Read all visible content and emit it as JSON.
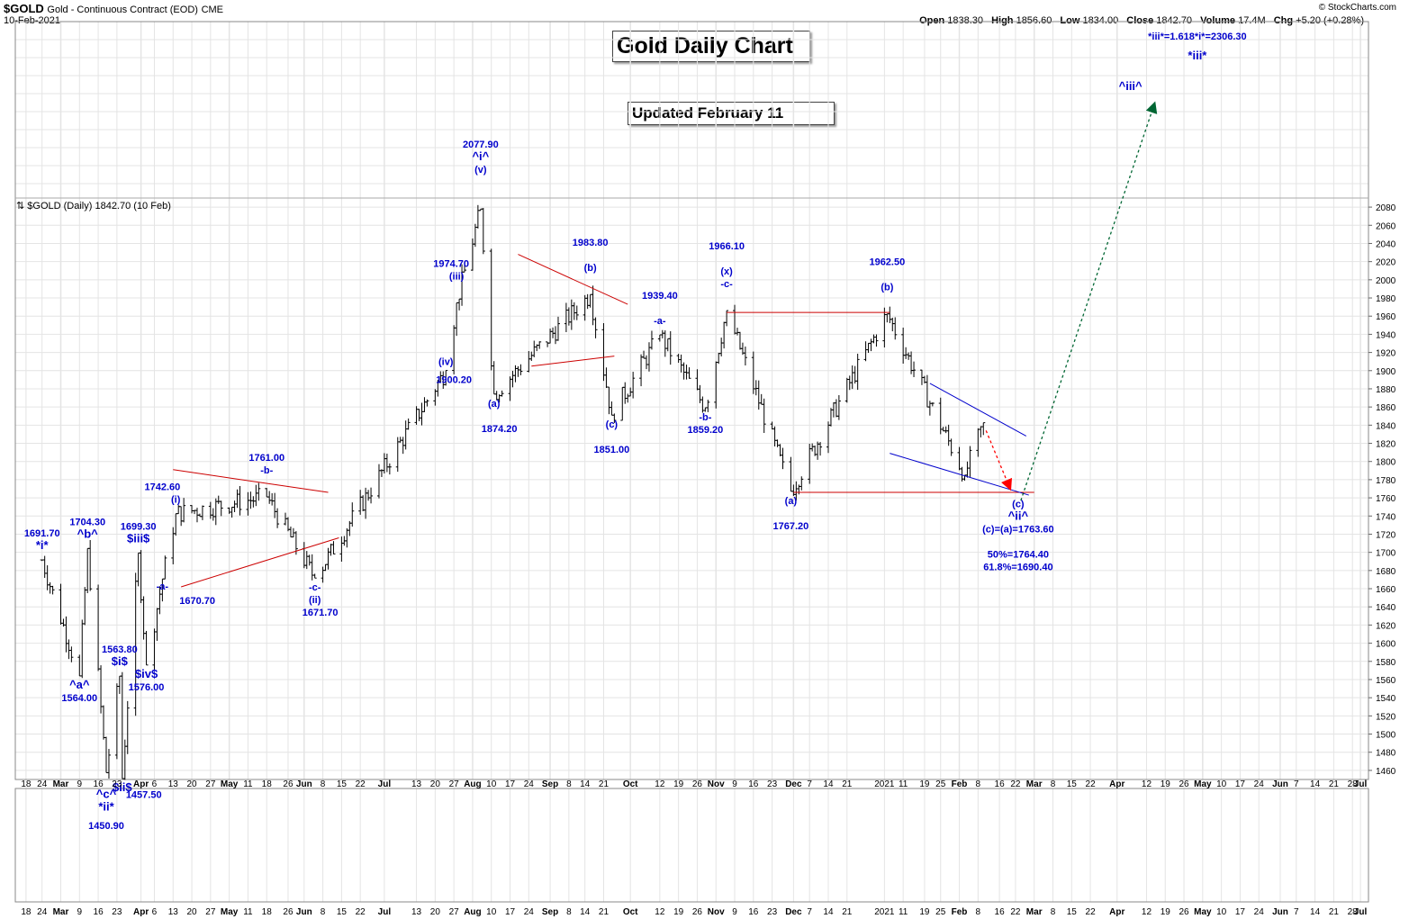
{
  "header": {
    "symbol": "$GOLD",
    "description": "Gold - Continuous Contract (EOD)",
    "exchange": "CME",
    "date": "10-Feb-2021",
    "copyright": "© StockCharts.com",
    "ohlc": [
      {
        "label": "Open",
        "value": "1838.30"
      },
      {
        "label": "High",
        "value": "1856.60"
      },
      {
        "label": "Low",
        "value": "1834.00"
      },
      {
        "label": "Close",
        "value": "1842.70"
      },
      {
        "label": "Volume",
        "value": "17.4M"
      },
      {
        "label": "Chg",
        "value": "+5.20 (+0.28%)"
      }
    ],
    "legend": "$GOLD (Daily) 1842.70 (10 Feb)"
  },
  "boxes": {
    "title": "Gold Daily Chart",
    "updated": "Updated February 11"
  },
  "colors": {
    "bars": "#000000",
    "annotation": "#0000cc",
    "trendline_red": "#cc0000",
    "trendline_blue": "#0000cc",
    "arrow_green": "#006633",
    "arrow_red": "#ff0000",
    "grid": "#e4e4e4"
  },
  "chart_data": {
    "type": "ohlc",
    "title": "Gold Daily Chart",
    "ylim": [
      1450,
      2090
    ],
    "y_ticks": [
      1460,
      1480,
      1500,
      1520,
      1540,
      1560,
      1580,
      1600,
      1620,
      1640,
      1660,
      1680,
      1700,
      1720,
      1740,
      1760,
      1780,
      1800,
      1820,
      1840,
      1860,
      1880,
      1900,
      1920,
      1940,
      1960,
      1980,
      2000,
      2020,
      2040,
      2060,
      2080
    ],
    "x_ticks": [
      "18",
      "24",
      "Mar",
      "9",
      "16",
      "23",
      "Apr",
      "6",
      "13",
      "20",
      "27",
      "May",
      "11",
      "18",
      "26",
      "Jun",
      "8",
      "15",
      "22",
      "Jul",
      "13",
      "20",
      "27",
      "Aug",
      "10",
      "17",
      "24",
      "Sep",
      "8",
      "14",
      "21",
      "Oct",
      "12",
      "19",
      "26",
      "Nov",
      "9",
      "16",
      "23",
      "Dec",
      "7",
      "14",
      "21",
      "2021",
      "11",
      "19",
      "25",
      "Feb",
      "8",
      "16",
      "22",
      "Mar",
      "8",
      "15",
      "22",
      "Apr",
      "12",
      "19",
      "26",
      "May",
      "10",
      "17",
      "24",
      "Jun",
      "7",
      "14",
      "21",
      "28",
      "Jul"
    ],
    "pivots": [
      {
        "x": "2020-02-24",
        "y": 1691.7
      },
      {
        "x": "2020-03-09",
        "y": 1564.0
      },
      {
        "x": "2020-03-12",
        "y": 1704.3
      },
      {
        "x": "2020-03-19",
        "y": 1457.5
      },
      {
        "x": "2020-03-24",
        "y": 1563.8
      },
      {
        "x": "2020-03-25",
        "y": 1450.9
      },
      {
        "x": "2020-03-31",
        "y": 1699.3
      },
      {
        "x": "2020-04-03",
        "y": 1576.0
      },
      {
        "x": "2020-04-09",
        "y": 1670.7
      },
      {
        "x": "2020-04-14",
        "y": 1742.6
      },
      {
        "x": "2020-05-18",
        "y": 1761.0
      },
      {
        "x": "2020-06-05",
        "y": 1671.7
      },
      {
        "x": "2020-07-24",
        "y": 1900.2
      },
      {
        "x": "2020-07-28",
        "y": 1974.7
      },
      {
        "x": "2020-08-06",
        "y": 2077.9
      },
      {
        "x": "2020-08-11",
        "y": 1874.2
      },
      {
        "x": "2020-09-16",
        "y": 1983.8
      },
      {
        "x": "2020-09-24",
        "y": 1851.0
      },
      {
        "x": "2020-10-12",
        "y": 1939.4
      },
      {
        "x": "2020-10-29",
        "y": 1859.2
      },
      {
        "x": "2020-11-06",
        "y": 1966.1
      },
      {
        "x": "2020-11-30",
        "y": 1767.2
      },
      {
        "x": "2021-01-05",
        "y": 1962.5
      },
      {
        "x": "2021-02-03",
        "y": 1785.0
      },
      {
        "x": "2021-02-10",
        "y": 1842.7
      }
    ],
    "annotations": [
      {
        "text": "1691.70",
        "x": "2020-02-24",
        "y": 1691.7,
        "pos": "above2"
      },
      {
        "text": "*i*",
        "x": "2020-02-24",
        "y": 1691.7,
        "pos": "above1"
      },
      {
        "text": "^a^",
        "x": "2020-03-09",
        "y": 1564.0,
        "pos": "below1"
      },
      {
        "text": "1564.00",
        "x": "2020-03-09",
        "y": 1564.0,
        "pos": "below2"
      },
      {
        "text": "1704.30",
        "x": "2020-03-12",
        "y": 1704.3,
        "pos": "above2"
      },
      {
        "text": "^b^",
        "x": "2020-03-12",
        "y": 1704.3,
        "pos": "above1"
      },
      {
        "text": "1563.80",
        "x": "2020-03-24",
        "y": 1563.8,
        "pos": "above2"
      },
      {
        "text": "$i$",
        "x": "2020-03-24",
        "y": 1563.8,
        "pos": "above1"
      },
      {
        "text": "$ii$",
        "x": "2020-03-25",
        "y": 1450.9,
        "pos": "below1"
      },
      {
        "text": "^c^",
        "x": "2020-03-19",
        "y": 1457.5,
        "pos": "below2"
      },
      {
        "text": "1457.50",
        "x": "2020-03-25",
        "y": 1457.5,
        "pos": "below2r"
      },
      {
        "text": "*ii*",
        "x": "2020-03-19",
        "y": 1457.5,
        "pos": "below3"
      },
      {
        "text": "1450.90",
        "x": "2020-03-19",
        "y": 1450.9,
        "pos": "below4"
      },
      {
        "text": "1699.30",
        "x": "2020-03-31",
        "y": 1699.3,
        "pos": "above2"
      },
      {
        "text": "$iii$",
        "x": "2020-03-31",
        "y": 1699.3,
        "pos": "above1"
      },
      {
        "text": "$iv$",
        "x": "2020-04-03",
        "y": 1576.0,
        "pos": "below1"
      },
      {
        "text": "1576.00",
        "x": "2020-04-03",
        "y": 1576.0,
        "pos": "below2"
      },
      {
        "text": "-a-",
        "x": "2020-04-09",
        "y": 1670.7,
        "pos": "below0"
      },
      {
        "text": "1670.70",
        "x": "2020-04-14",
        "y": 1670.7,
        "pos": "below1r"
      },
      {
        "text": "1742.60",
        "x": "2020-04-09",
        "y": 1742.6,
        "pos": "above2"
      },
      {
        "text": "(i)",
        "x": "2020-04-14",
        "y": 1742.6,
        "pos": "above1"
      },
      {
        "text": "1761.00",
        "x": "2020-05-18",
        "y": 1761.0,
        "pos": "above3"
      },
      {
        "text": "-b-",
        "x": "2020-05-18",
        "y": 1761.0,
        "pos": "above2"
      },
      {
        "text": "-c-",
        "x": "2020-06-05",
        "y": 1671.7,
        "pos": "below1"
      },
      {
        "text": "(ii)",
        "x": "2020-06-05",
        "y": 1671.7,
        "pos": "below2"
      },
      {
        "text": "1671.70",
        "x": "2020-06-07",
        "y": 1671.7,
        "pos": "below3"
      },
      {
        "text": "(iv)",
        "x": "2020-07-24",
        "y": 1900.2,
        "pos": "above0"
      },
      {
        "text": "1900.20",
        "x": "2020-07-27",
        "y": 1900.2,
        "pos": "below1"
      },
      {
        "text": "1974.70",
        "x": "2020-07-26",
        "y": 1974.7,
        "pos": "above3"
      },
      {
        "text": "(iii)",
        "x": "2020-07-28",
        "y": 1974.7,
        "pos": "above2"
      },
      {
        "text": "2077.90",
        "x": "2020-08-06",
        "y": 2077.9,
        "pos": "above5"
      },
      {
        "text": "^i^",
        "x": "2020-08-06",
        "y": 2077.9,
        "pos": "above4"
      },
      {
        "text": "(v)",
        "x": "2020-08-06",
        "y": 2077.9,
        "pos": "above3"
      },
      {
        "text": "(a)",
        "x": "2020-08-11",
        "y": 1874.2,
        "pos": "below1"
      },
      {
        "text": "1874.20",
        "x": "2020-08-13",
        "y": 1874.2,
        "pos": "below3"
      },
      {
        "text": "1983.80",
        "x": "2020-09-16",
        "y": 1983.8,
        "pos": "above4"
      },
      {
        "text": "(b)",
        "x": "2020-09-16",
        "y": 1983.8,
        "pos": "above2"
      },
      {
        "text": "(c)",
        "x": "2020-09-24",
        "y": 1851.0,
        "pos": "below1"
      },
      {
        "text": "1851.00",
        "x": "2020-09-24",
        "y": 1851.0,
        "pos": "below3"
      },
      {
        "text": "1939.40",
        "x": "2020-10-12",
        "y": 1939.4,
        "pos": "above3"
      },
      {
        "text": "-a-",
        "x": "2020-10-12",
        "y": 1939.4,
        "pos": "above1"
      },
      {
        "text": "-b-",
        "x": "2020-10-29",
        "y": 1859.2,
        "pos": "below1"
      },
      {
        "text": "1859.20",
        "x": "2020-10-29",
        "y": 1859.2,
        "pos": "below2"
      },
      {
        "text": "1966.10",
        "x": "2020-11-06",
        "y": 1966.1,
        "pos": "above5"
      },
      {
        "text": "(x)",
        "x": "2020-11-06",
        "y": 1966.1,
        "pos": "above3"
      },
      {
        "text": "-c-",
        "x": "2020-11-06",
        "y": 1966.1,
        "pos": "above2"
      },
      {
        "text": "(a)",
        "x": "2020-11-30",
        "y": 1767.2,
        "pos": "below1"
      },
      {
        "text": "1767.20",
        "x": "2020-11-30",
        "y": 1767.2,
        "pos": "below3"
      },
      {
        "text": "1962.50",
        "x": "2021-01-05",
        "y": 1962.5,
        "pos": "above4"
      },
      {
        "text": "(b)",
        "x": "2021-01-05",
        "y": 1962.5,
        "pos": "above2"
      },
      {
        "text": "(c)",
        "x": "2021-02-23",
        "y": 1763.6,
        "pos": "below1"
      },
      {
        "text": "^ii^",
        "x": "2021-02-23",
        "y": 1763.6,
        "pos": "below2"
      },
      {
        "text": "(c)=(a)=1763.60",
        "x": "2021-02-23",
        "y": 1763.6,
        "pos": "below3"
      },
      {
        "text": "50%=1764.40",
        "x": "2021-02-23",
        "y": 1763.6,
        "pos": "below5"
      },
      {
        "text": "61.8%=1690.40",
        "x": "2021-02-23",
        "y": 1763.6,
        "pos": "below6"
      },
      {
        "text": "*iii*=1.618*i*=2306.30",
        "x": "2021-05-01",
        "y": 2090,
        "pos": "top1"
      },
      {
        "text": "*iii*",
        "x": "2021-05-01",
        "y": 2090,
        "pos": "top2"
      },
      {
        "text": "^iii^",
        "x": "2021-04-06",
        "y": 2090,
        "pos": "top3"
      }
    ],
    "trendlines": [
      {
        "color": "red",
        "x1": "2020-04-13",
        "y1": 1791,
        "x2": "2020-06-10",
        "y2": 1766
      },
      {
        "color": "red",
        "x1": "2020-04-16",
        "y1": 1662,
        "x2": "2020-06-14",
        "y2": 1716
      },
      {
        "color": "red",
        "x1": "2020-08-20",
        "y1": 2028,
        "x2": "2020-09-30",
        "y2": 1973
      },
      {
        "color": "red",
        "x1": "2020-08-25",
        "y1": 1905,
        "x2": "2020-09-25",
        "y2": 1916
      },
      {
        "color": "red",
        "x1": "2020-11-06",
        "y1": 1964,
        "x2": "2021-01-06",
        "y2": 1964
      },
      {
        "color": "red",
        "x1": "2020-12-01",
        "y1": 1766,
        "x2": "2021-03-01",
        "y2": 1766
      },
      {
        "color": "blue",
        "x1": "2021-01-21",
        "y1": 1886,
        "x2": "2021-02-26",
        "y2": 1828
      },
      {
        "color": "blue",
        "x1": "2021-01-06",
        "y1": 1809,
        "x2": "2021-02-27",
        "y2": 1763
      }
    ]
  }
}
